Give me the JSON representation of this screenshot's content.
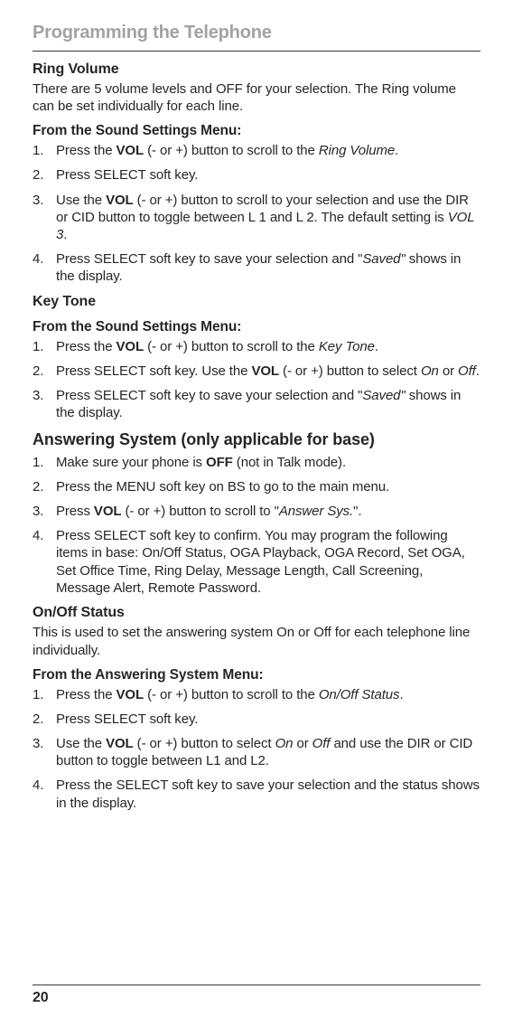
{
  "chapter": "Programming the Telephone",
  "ringVolume": {
    "title": "Ring Volume",
    "intro": "There are 5 volume levels and OFF for your selection. The Ring volume can be set individually for each line.",
    "from": "From the Sound Settings Menu:",
    "steps": [
      {
        "pre": "Press the ",
        "b": "VOL",
        "post1": " (- or +) button to scroll to the ",
        "i": "Ring Volume",
        "post2": "."
      },
      {
        "text": "Press SELECT soft key."
      },
      {
        "pre": "Use the ",
        "b": "VOL",
        "mid": " (- or +) button to scroll to your selection and use the DIR or CID button to toggle between L 1 and L 2. The default setting is ",
        "i": "VOL 3",
        "post": "."
      },
      {
        "pre": "Press SELECT soft key to save your selection and \"",
        "i": "Saved\"",
        "post": " shows in the display."
      }
    ]
  },
  "keyTone": {
    "title": "Key Tone",
    "from": "From the Sound Settings Menu:",
    "steps": [
      {
        "pre": "Press the ",
        "b": "VOL",
        "post1": " (- or +) button to scroll to the ",
        "i": "Key Tone",
        "post2": "."
      },
      {
        "pre": "Press SELECT soft key. Use the ",
        "b": "VOL",
        "mid": " (- or +) button to select ",
        "i1": "On",
        "or": " or ",
        "i2": "Off",
        "post": "."
      },
      {
        "pre": "Press SELECT soft key to save your selection and \"",
        "i": "Saved\"",
        "post": " shows in the display."
      }
    ]
  },
  "answering": {
    "title": "Answering System (only applicable for base)",
    "steps": [
      {
        "pre": "Make sure your phone is ",
        "b": "OFF",
        "post": " (not in Talk mode)."
      },
      {
        "text": "Press the MENU soft key on BS to go to the main menu."
      },
      {
        "pre": "Press ",
        "b": "VOL",
        "mid": " (- or +) button to scroll to \"",
        "i": "Answer Sys.",
        "post": "\"."
      },
      {
        "text": "Press SELECT soft key to confirm. You may program the following items in base: On/Off Status, OGA Playback, OGA Record, Set OGA, Set Office Time, Ring Delay, Message Length, Call Screening, Message Alert, Remote Password."
      }
    ]
  },
  "onoff": {
    "title": "On/Off Status",
    "intro": "This is used to set the answering system On or Off for each telephone line individually.",
    "from": "From the Answering System Menu:",
    "steps": [
      {
        "pre": "Press the ",
        "b": "VOL",
        "post1": " (- or +) button to scroll to the ",
        "i": "On/Off Status",
        "post2": "."
      },
      {
        "text": "Press SELECT soft key."
      },
      {
        "pre": "Use the ",
        "b": "VOL",
        "mid": " (- or +) button to select ",
        "i1": "On",
        "or": " or ",
        "i2": "Off",
        "post": " and use the DIR or CID button to toggle between L1 and L2."
      },
      {
        "text": "Press the SELECT soft key to save your selection and the status shows in the display."
      }
    ]
  },
  "page": "20"
}
